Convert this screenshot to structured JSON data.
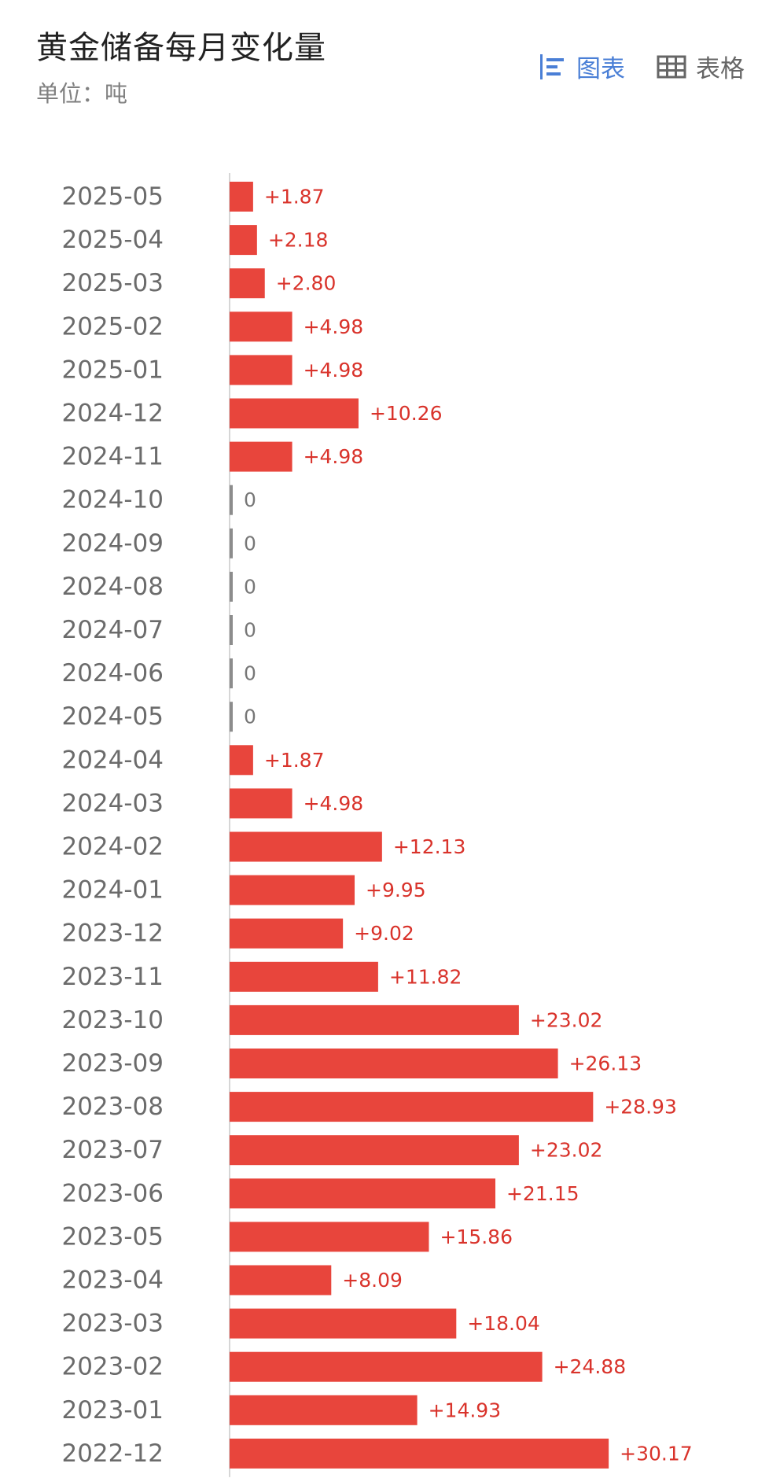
{
  "header": {
    "title": "黄金储备每月变化量",
    "unit": "单位：吨"
  },
  "view_toggle": {
    "chart_label": "图表",
    "table_label": "表格",
    "active": "chart"
  },
  "colors": {
    "bar": "#e8453c",
    "zero_bar": "#8c8c8c",
    "value_label": "#d9332b",
    "zero_label": "#777777",
    "category_label": "#6b6b6b",
    "axis": "#d6d6d6",
    "active_toggle": "#4a7fd6",
    "inactive_toggle": "#666666"
  },
  "chart_data": {
    "type": "bar",
    "orientation": "horizontal",
    "categories": [
      "2025-05",
      "2025-04",
      "2025-03",
      "2025-02",
      "2025-01",
      "2024-12",
      "2024-11",
      "2024-10",
      "2024-09",
      "2024-08",
      "2024-07",
      "2024-06",
      "2024-05",
      "2024-04",
      "2024-03",
      "2024-02",
      "2024-01",
      "2023-12",
      "2023-11",
      "2023-10",
      "2023-09",
      "2023-08",
      "2023-07",
      "2023-06",
      "2023-05",
      "2023-04",
      "2023-03",
      "2023-02",
      "2023-01",
      "2022-12"
    ],
    "values": [
      1.87,
      2.18,
      2.8,
      4.98,
      4.98,
      10.26,
      4.98,
      0,
      0,
      0,
      0,
      0,
      0,
      1.87,
      4.98,
      12.13,
      9.95,
      9.02,
      11.82,
      23.02,
      26.13,
      28.93,
      23.02,
      21.15,
      15.86,
      8.09,
      18.04,
      24.88,
      14.93,
      30.17
    ],
    "labels": [
      "+1.87",
      "+2.18",
      "+2.80",
      "+4.98",
      "+4.98",
      "+10.26",
      "+4.98",
      "0",
      "0",
      "0",
      "0",
      "0",
      "0",
      "+1.87",
      "+4.98",
      "+12.13",
      "+9.95",
      "+9.02",
      "+11.82",
      "+23.02",
      "+26.13",
      "+28.93",
      "+23.02",
      "+21.15",
      "+15.86",
      "+8.09",
      "+18.04",
      "+24.88",
      "+14.93",
      "+30.17"
    ],
    "xlim": [
      0,
      31.6
    ],
    "grid": false,
    "legend": "none"
  }
}
